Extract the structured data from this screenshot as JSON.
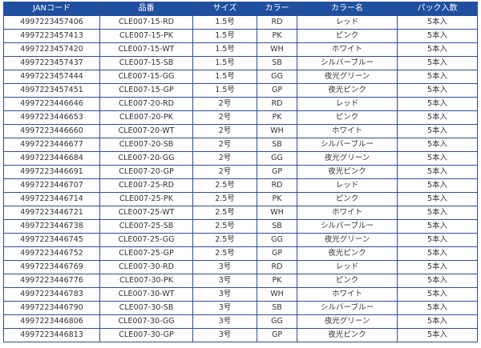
{
  "table": {
    "header": [
      "JANコード",
      "品番",
      "サイズ",
      "カラー",
      "カラー名",
      "パック入数"
    ],
    "rows": [
      [
        "4997223457406",
        "CLE007-15-RD",
        "1.5号",
        "RD",
        "レッド",
        "5本入"
      ],
      [
        "4997223457413",
        "CLE007-15-PK",
        "1.5号",
        "PK",
        "ピンク",
        "5本入"
      ],
      [
        "4997223457420",
        "CLE007-15-WT",
        "1.5号",
        "WH",
        "ホワイト",
        "5本入"
      ],
      [
        "4997223457437",
        "CLE007-15-SB",
        "1.5号",
        "SB",
        "シルバーブルー",
        "5本入"
      ],
      [
        "4997223457444",
        "CLE007-15-GG",
        "1.5号",
        "GG",
        "夜光グリーン",
        "5本入"
      ],
      [
        "4997223457451",
        "CLE007-15-GP",
        "1.5号",
        "GP",
        "夜光ピンク",
        "5本入"
      ],
      [
        "4997223446646",
        "CLE007-20-RD",
        "2号",
        "RD",
        "レッド",
        "5本入"
      ],
      [
        "4997223446653",
        "CLE007-20-PK",
        "2号",
        "PK",
        "ピンク",
        "5本入"
      ],
      [
        "4997223446660",
        "CLE007-20-WT",
        "2号",
        "WH",
        "ホワイト",
        "5本入"
      ],
      [
        "4997223446677",
        "CLE007-20-SB",
        "2号",
        "SB",
        "シルバーブルー",
        "5本入"
      ],
      [
        "4997223446684",
        "CLE007-20-GG",
        "2号",
        "GG",
        "夜光グリーン",
        "5本入"
      ],
      [
        "4997223446691",
        "CLE007-20-GP",
        "2号",
        "GP",
        "夜光ピンク",
        "5本入"
      ],
      [
        "4997223446707",
        "CLE007-25-RD",
        "2.5号",
        "RD",
        "レッド",
        "5本入"
      ],
      [
        "4997223446714",
        "CLE007-25-PK",
        "2.5号",
        "PK",
        "ピンク",
        "5本入"
      ],
      [
        "4997223446721",
        "CLE007-25-WT",
        "2.5号",
        "WH",
        "ホワイト",
        "5本入"
      ],
      [
        "4997223446738",
        "CLE007-25-SB",
        "2.5号",
        "SB",
        "シルバーブルー",
        "5本入"
      ],
      [
        "4997223446745",
        "CLE007-25-GG",
        "2.5号",
        "GG",
        "夜光グリーン",
        "5本入"
      ],
      [
        "4997223446752",
        "CLE007-25-GP",
        "2.5号",
        "GP",
        "夜光ピンク",
        "5本入"
      ],
      [
        "4997223446769",
        "CLE007-30-RD",
        "3号",
        "RD",
        "レッド",
        "5本入"
      ],
      [
        "4997223446776",
        "CLE007-30-PK",
        "3号",
        "PK",
        "ピンク",
        "5本入"
      ],
      [
        "4997223446783",
        "CLE007-30-WT",
        "3号",
        "WH",
        "ホワイト",
        "5本入"
      ],
      [
        "4997223446790",
        "CLE007-30-SB",
        "3号",
        "SB",
        "シルバーブルー",
        "5本入"
      ],
      [
        "4997223446806",
        "CLE007-30-GG",
        "3号",
        "GG",
        "夜光グリーン",
        "5本入"
      ],
      [
        "4997223446813",
        "CLE007-30-GP",
        "3号",
        "GP",
        "夜光ピンク",
        "5本入"
      ]
    ]
  }
}
